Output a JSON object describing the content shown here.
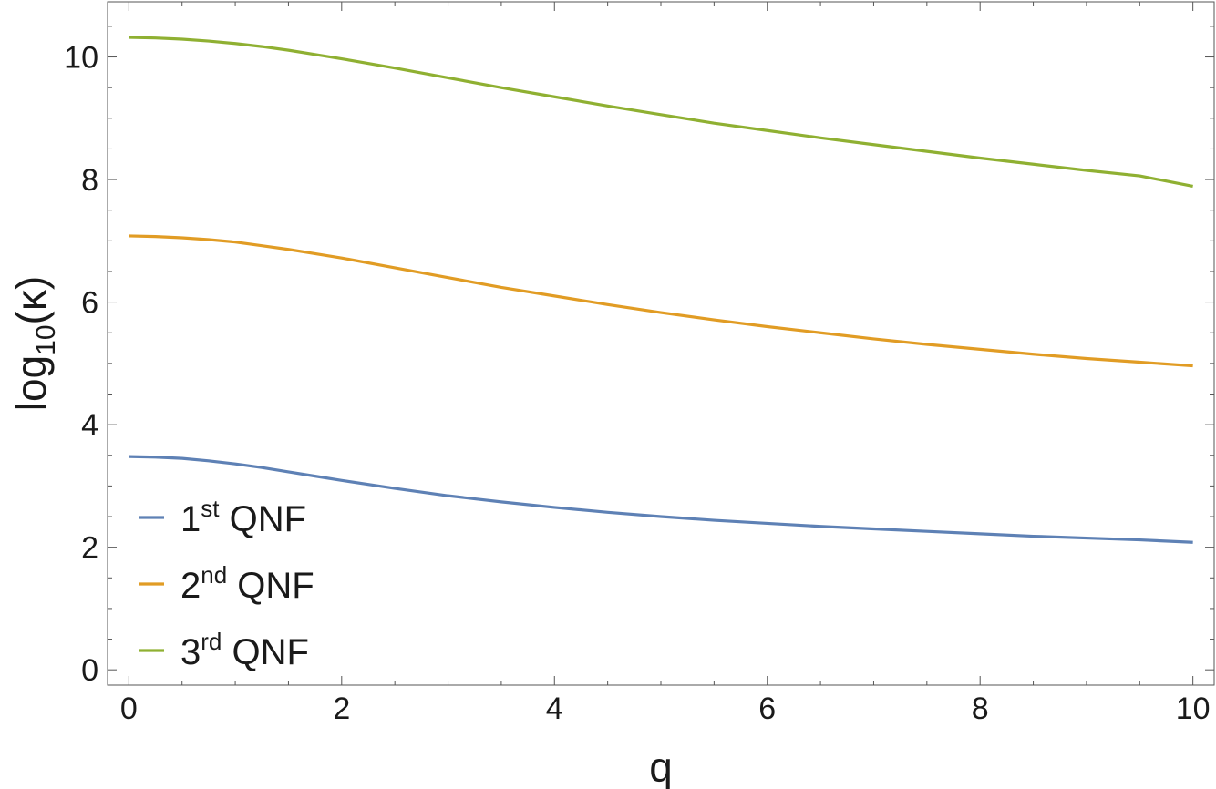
{
  "chart_data": {
    "type": "line",
    "xlabel": "q",
    "ylabel": {
      "base": "log",
      "sub": "10",
      "arg": "(κ)"
    },
    "xlim": [
      -0.2,
      10.2
    ],
    "ylim": [
      -0.25,
      10.9
    ],
    "x_ticks": [
      0,
      2,
      4,
      6,
      8,
      10
    ],
    "y_ticks": [
      0,
      2,
      4,
      6,
      8,
      10
    ],
    "x_minor_step": 0.5,
    "y_minor_step": 0.5,
    "grid": false,
    "legend_position": "bottom-left",
    "x": [
      0,
      0.25,
      0.5,
      0.75,
      1,
      1.25,
      1.5,
      1.75,
      2,
      2.5,
      3,
      3.5,
      4,
      4.5,
      5,
      5.5,
      6,
      6.5,
      7,
      7.5,
      8,
      8.5,
      9,
      9.5,
      10
    ],
    "series": [
      {
        "name": "QNF",
        "ordinal": "1",
        "suffix": "st",
        "color": "#5e81b5",
        "values": [
          3.48,
          3.47,
          3.45,
          3.41,
          3.36,
          3.3,
          3.23,
          3.16,
          3.09,
          2.96,
          2.84,
          2.74,
          2.65,
          2.57,
          2.5,
          2.44,
          2.39,
          2.34,
          2.3,
          2.26,
          2.22,
          2.18,
          2.15,
          2.12,
          2.08
        ]
      },
      {
        "name": "QNF",
        "ordinal": "2",
        "suffix": "nd",
        "color": "#e19c24",
        "values": [
          7.08,
          7.07,
          7.05,
          7.02,
          6.98,
          6.92,
          6.86,
          6.79,
          6.72,
          6.56,
          6.4,
          6.24,
          6.1,
          5.96,
          5.83,
          5.71,
          5.6,
          5.5,
          5.4,
          5.31,
          5.23,
          5.15,
          5.08,
          5.02,
          4.96
        ]
      },
      {
        "name": "QNF",
        "ordinal": "3",
        "suffix": "rd",
        "color": "#8fb032",
        "values": [
          10.32,
          10.31,
          10.29,
          10.26,
          10.22,
          10.17,
          10.11,
          10.04,
          9.97,
          9.82,
          9.66,
          9.5,
          9.35,
          9.2,
          9.06,
          8.92,
          8.8,
          8.68,
          8.57,
          8.46,
          8.35,
          8.25,
          8.15,
          8.06,
          7.89
        ]
      }
    ]
  }
}
